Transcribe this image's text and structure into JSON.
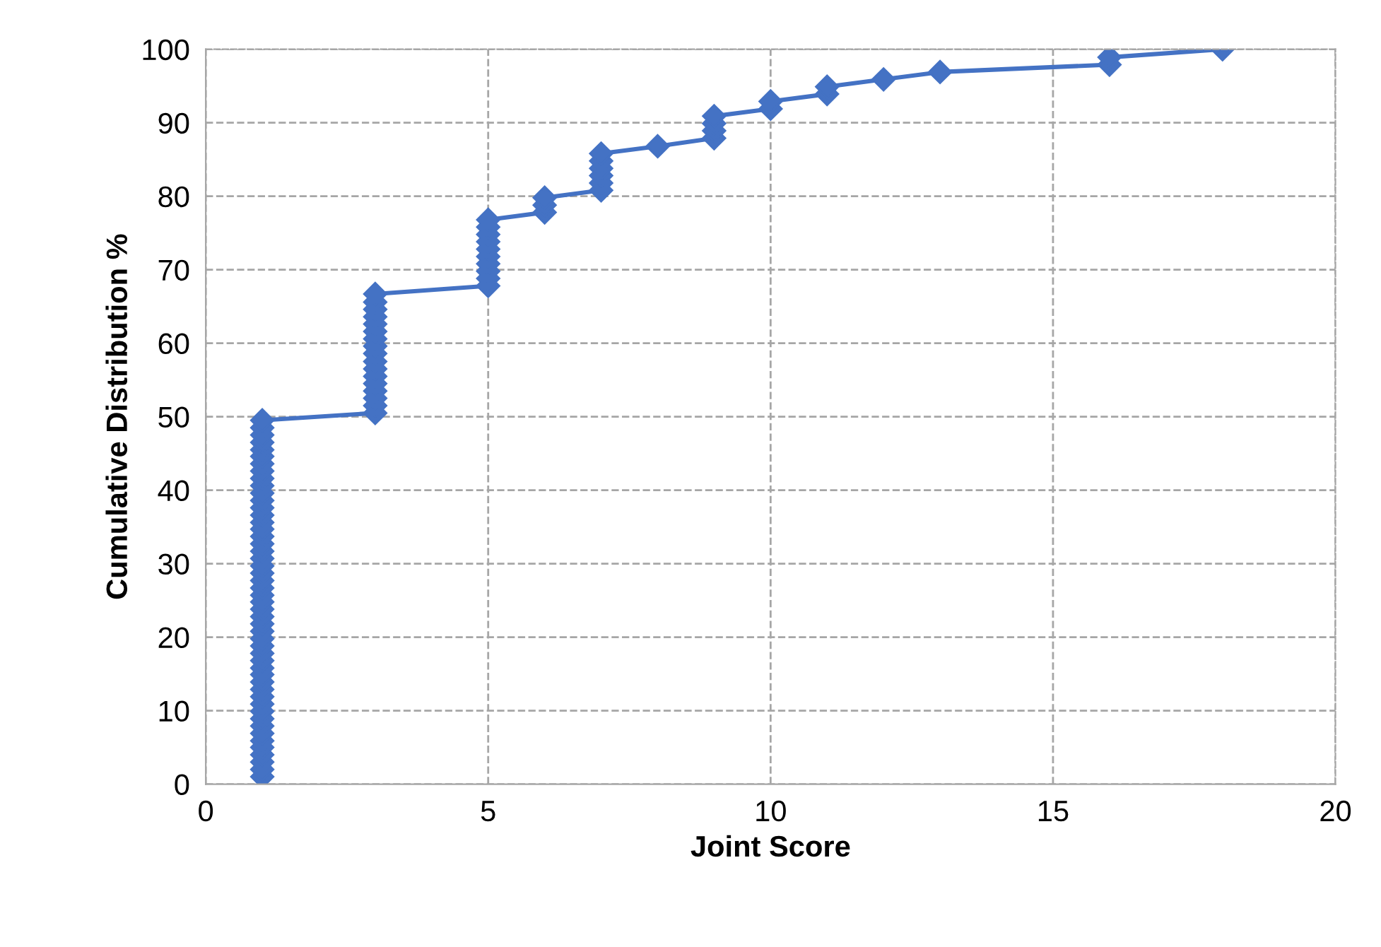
{
  "chart_data": {
    "type": "line",
    "xlabel": "Joint Score",
    "ylabel": "Cumulative Distribution %",
    "series": [
      {
        "color": "#4472c4",
        "x": [
          1,
          1,
          1,
          1,
          1,
          1,
          1,
          1,
          1,
          1,
          1,
          1,
          1,
          1,
          1,
          1,
          1,
          1,
          1,
          1,
          1,
          1,
          1,
          1,
          1,
          1,
          1,
          1,
          1,
          1,
          1,
          1,
          1,
          1,
          1,
          1,
          1,
          1,
          1,
          1,
          1,
          1,
          1,
          1,
          1,
          1,
          1,
          1,
          1,
          1,
          3,
          3,
          3,
          3,
          3,
          3,
          3,
          3,
          3,
          3,
          3,
          3,
          3,
          3,
          3,
          3,
          3,
          5,
          5,
          5,
          5,
          5,
          5,
          5,
          5,
          5,
          5,
          6,
          6,
          6,
          7,
          7,
          7,
          7,
          7,
          7,
          8,
          9,
          9,
          9,
          9,
          10,
          10,
          11,
          11,
          12,
          13,
          16,
          16,
          18
        ],
        "values": [
          1.0,
          2.0,
          3.0,
          4.0,
          5.0,
          5.9,
          6.9,
          7.9,
          8.9,
          9.9,
          10.9,
          11.9,
          12.9,
          13.9,
          14.9,
          15.8,
          16.8,
          17.8,
          18.8,
          19.8,
          20.8,
          21.8,
          22.8,
          23.8,
          24.8,
          25.7,
          26.7,
          27.7,
          28.7,
          29.7,
          30.7,
          31.7,
          32.7,
          33.7,
          34.7,
          35.6,
          36.6,
          37.6,
          38.6,
          39.6,
          40.6,
          41.6,
          42.6,
          43.6,
          44.6,
          45.5,
          46.5,
          47.5,
          48.5,
          49.5,
          50.5,
          51.5,
          52.5,
          53.5,
          54.5,
          55.5,
          56.5,
          57.5,
          58.6,
          59.6,
          60.6,
          61.6,
          62.6,
          63.6,
          64.6,
          65.6,
          66.7,
          67.8,
          68.8,
          69.8,
          70.8,
          71.8,
          72.8,
          73.8,
          74.8,
          75.8,
          76.8,
          77.8,
          78.8,
          79.8,
          80.8,
          81.8,
          82.8,
          83.8,
          84.8,
          85.8,
          86.8,
          87.9,
          88.9,
          89.9,
          90.9,
          91.9,
          92.9,
          93.9,
          94.9,
          95.9,
          96.9,
          97.9,
          98.9,
          100
        ]
      }
    ],
    "xlim": [
      0,
      20
    ],
    "xticks": [
      0,
      5,
      10,
      15,
      20
    ],
    "ylim": [
      0,
      100
    ],
    "yticks": [
      0,
      10,
      20,
      30,
      40,
      50,
      60,
      70,
      80,
      90,
      100
    ],
    "grid": true,
    "marker": "diamond",
    "line_style": "solid",
    "legend": false
  }
}
